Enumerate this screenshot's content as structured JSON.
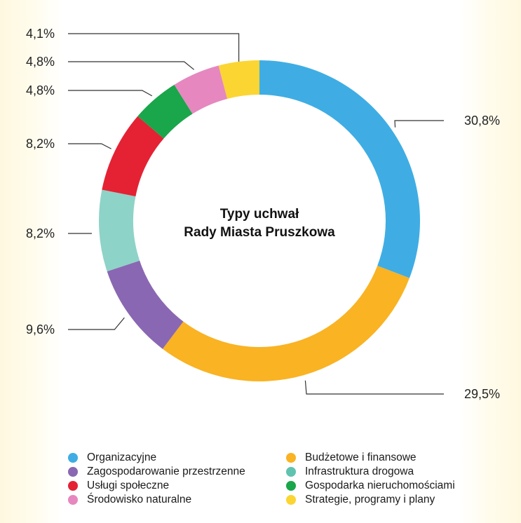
{
  "chart_data": {
    "type": "pie",
    "title": "Typy uchwał",
    "subtitle": "Rady Miasta Pruszkowa",
    "categories": [
      "Organizacyjne",
      "Budżetowe i finansowe",
      "Zagospodarowanie przestrzenne",
      "Infrastruktura drogowa",
      "Usługi społeczne",
      "Gospodarka nieruchomościami",
      "Środowisko naturalne",
      "Strategie, programy i plany"
    ],
    "values": [
      30.8,
      29.5,
      9.6,
      8.2,
      8.2,
      4.8,
      4.8,
      4.1
    ],
    "value_labels": [
      "30,8%",
      "29,5%",
      "9,6%",
      "8,2%",
      "8,2%",
      "4,8%",
      "4,8%",
      "4,1%"
    ],
    "colors": [
      "#3fade4",
      "#f9b323",
      "#8a67b2",
      "#8ed3c7",
      "#e42234",
      "#1aa64a",
      "#e687bf",
      "#fbd532"
    ],
    "legend_position": "bottom"
  },
  "legend": {
    "items": [
      {
        "label": "Organizacyjne",
        "color": "#3fade4"
      },
      {
        "label": "Budżetowe i finansowe",
        "color": "#f9b323"
      },
      {
        "label": "Zagospodarowanie przestrzenne",
        "color": "#8a67b2"
      },
      {
        "label": "Infrastruktura drogowa",
        "color": "#5fc3b0"
      },
      {
        "label": "Usługi społeczne",
        "color": "#e42234"
      },
      {
        "label": "Gospodarka nieruchomościami",
        "color": "#1aa64a"
      },
      {
        "label": "Środowisko naturalne",
        "color": "#e687bf"
      },
      {
        "label": "Strategie, programy i plany",
        "color": "#fbd532"
      }
    ]
  }
}
